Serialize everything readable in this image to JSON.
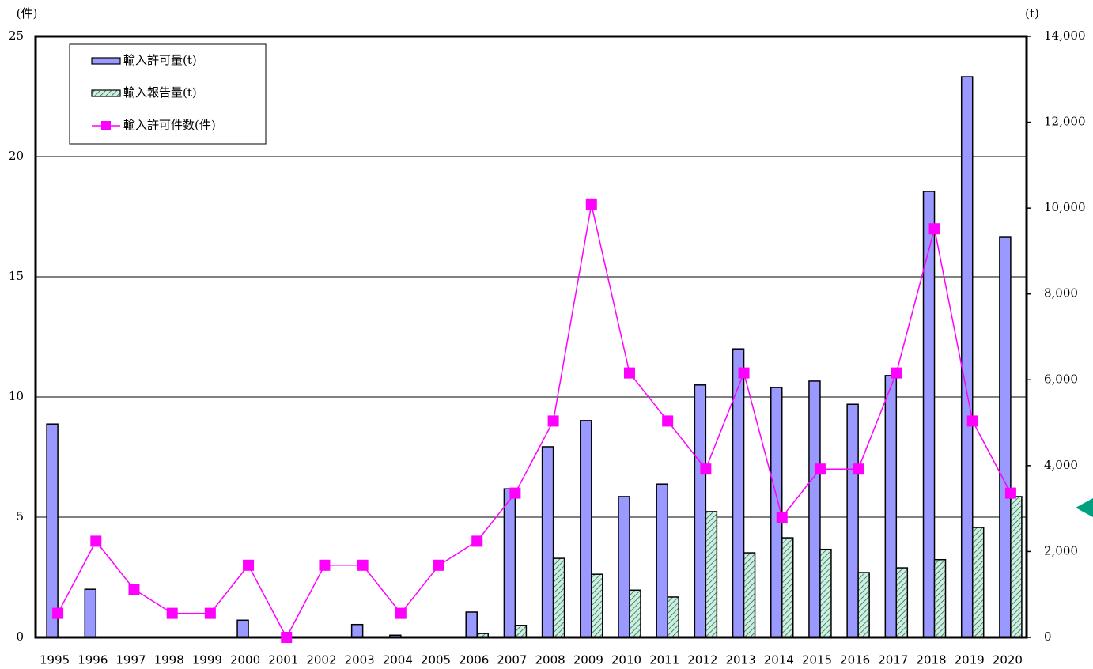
{
  "chart_data": {
    "type": "bar-line",
    "y_unit": "(件)",
    "y2_unit": "(t)",
    "categories": [
      "1995",
      "1996",
      "1997",
      "1998",
      "1999",
      "2000",
      "2001",
      "2002",
      "2003",
      "2004",
      "2005",
      "2006",
      "2007",
      "2008",
      "2009",
      "2010",
      "2011",
      "2012",
      "2013",
      "2014",
      "2015",
      "2016",
      "2017",
      "2018",
      "2019",
      "2020"
    ],
    "series": [
      {
        "name": "輸入許可量(t)",
        "type": "bar",
        "axis": "y2",
        "color": "#9999ff",
        "values": [
          4970,
          1120,
          0,
          0,
          0,
          400,
          0,
          0,
          300,
          50,
          0,
          590,
          3460,
          4440,
          5050,
          3280,
          3570,
          5880,
          6720,
          5820,
          5970,
          5430,
          6100,
          10390,
          13060,
          9320
        ]
      },
      {
        "name": "輸入報告量(t)",
        "type": "bar",
        "axis": "y2",
        "color": "#99ddcc",
        "values": [
          0,
          0,
          0,
          0,
          0,
          0,
          0,
          0,
          0,
          0,
          0,
          90,
          280,
          1840,
          1470,
          1100,
          940,
          2930,
          1970,
          2320,
          2050,
          1510,
          1620,
          1810,
          2560,
          3280
        ]
      },
      {
        "name": "輸入許可件数(件)",
        "type": "line",
        "axis": "y",
        "color": "#ff00ff",
        "values": [
          1,
          4,
          2,
          1,
          1,
          3,
          0,
          3,
          3,
          1,
          3,
          4,
          6,
          9,
          18,
          11,
          9,
          7,
          11,
          5,
          7,
          7,
          11,
          17,
          9,
          6
        ]
      }
    ],
    "ylim": [
      0,
      25
    ],
    "yticks": [
      0,
      5,
      10,
      15,
      20,
      25
    ],
    "y2lim": [
      0,
      14000
    ],
    "y2ticks": [
      0,
      {
        "value": 2000,
        "label": "2,000"
      },
      {
        "value": 4000,
        "label": "4,000"
      },
      {
        "value": 6000,
        "label": "6,000"
      },
      {
        "value": 8000,
        "label": "8,000"
      },
      {
        "value": 10000,
        "label": "10,000"
      },
      {
        "value": 12000,
        "label": "12,000"
      },
      {
        "value": 14000,
        "label": "14,000"
      }
    ],
    "grid": true,
    "legend": "top-left"
  }
}
